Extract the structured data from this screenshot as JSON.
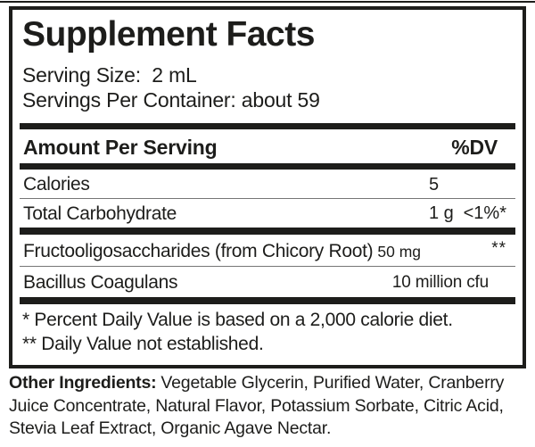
{
  "facts": {
    "title": "Supplement Facts",
    "serving_size": "Serving Size:  2 mL",
    "servings_per_container": "Servings Per Container: about 59",
    "columns": {
      "amount": "Amount Per Serving",
      "dv": "%DV"
    },
    "rows": [
      {
        "name": "Calories",
        "amount": "5",
        "dv": ""
      },
      {
        "name": "Total Carbohydrate",
        "amount": "1 g",
        "dv": "<1%*"
      },
      {
        "name": "Fructooligosaccharides (from Chicory Root)",
        "amount": "50 mg",
        "dv": "**"
      },
      {
        "name": "Bacillus Coagulans",
        "amount": "10 million cfu",
        "dv": ""
      }
    ],
    "footnotes": [
      "* Percent Daily Value is based on a 2,000 calorie diet.",
      "** Daily Value not established."
    ]
  },
  "other_ingredients": {
    "label": "Other Ingredients:",
    "text": "Vegetable Glycerin, Purified Water, Cranberry Juice Concentrate, Natural Flavor, Potassium Sorbate, Citric Acid, Stevia Leaf Extract, Organic Agave Nectar."
  },
  "colors": {
    "ink": "#1d1d1b",
    "background": "#ffffff",
    "hairline": "#767676"
  }
}
